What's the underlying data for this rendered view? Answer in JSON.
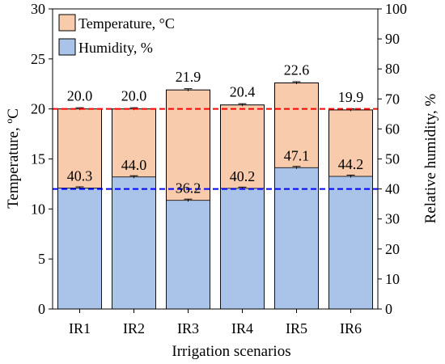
{
  "chart_data": {
    "type": "bar",
    "categories": [
      "IR1",
      "IR2",
      "IR3",
      "IR4",
      "IR5",
      "IR6"
    ],
    "series": [
      {
        "name": "Temperature, °C",
        "axis": "left",
        "values": [
          20.0,
          20.0,
          21.9,
          20.4,
          22.6,
          19.9
        ],
        "labels": [
          "20.0",
          "20.0",
          "21.9",
          "20.4",
          "22.6",
          "19.9"
        ],
        "color": "#f8cbad",
        "reference_line": 20.0,
        "reference_color": "#ff0000"
      },
      {
        "name": "Humidity, %",
        "axis": "right",
        "values": [
          40.3,
          44.0,
          36.2,
          40.2,
          47.1,
          44.2
        ],
        "labels": [
          "40.3",
          "44.0",
          "36.2",
          "40.2",
          "47.1",
          "44.2"
        ],
        "color": "#a9c4e8",
        "reference_line": 40.0,
        "reference_color": "#0000ff"
      }
    ],
    "xlabel": "Irrigation scenarios",
    "ylabel": "Temperature, ºC",
    "ylabel_right": "Relative humidity, %",
    "ylim": [
      0,
      30
    ],
    "ylim_right": [
      0,
      100
    ],
    "yticks": [
      0,
      5,
      10,
      15,
      20,
      25,
      30
    ],
    "yticks_right": [
      0,
      10,
      20,
      30,
      40,
      50,
      60,
      70,
      80,
      90,
      100
    ],
    "legend_position": "top-left",
    "grid": false
  }
}
